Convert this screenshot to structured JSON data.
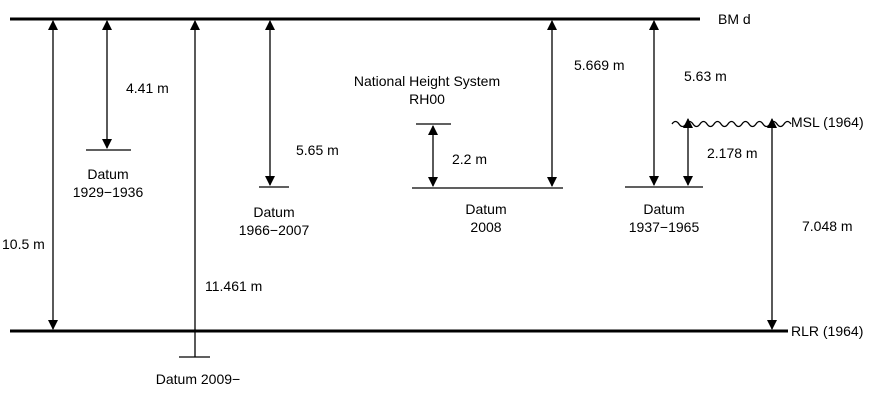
{
  "reference_lines": {
    "top": "BM d",
    "bottom": "RLR (1964)",
    "msl": "MSL (1964)"
  },
  "datums": {
    "d1929": {
      "line1": "Datum",
      "line2": "1929−1936"
    },
    "d1966": {
      "line1": "Datum",
      "line2": "1966−2007"
    },
    "d2008": {
      "line1": "Datum",
      "line2": "2008"
    },
    "d1937": {
      "line1": "Datum",
      "line2": "1937−1965"
    },
    "d2009": {
      "line1": "Datum 2009−"
    }
  },
  "system": {
    "line1": "National Height System",
    "line2": "RH00"
  },
  "measurements": {
    "total_left": "10.5 m",
    "bm_to_1929": "4.41 m",
    "bm_to_2009": "11.461 m",
    "bm_to_1966": "5.65 m",
    "rh00_to_2008": "2.2 m",
    "bm_to_2008": "5.669 m",
    "bm_to_1937": "5.63 m",
    "msl_to_1937": "2.178 m",
    "msl_to_rlr": "7.048 m"
  }
}
